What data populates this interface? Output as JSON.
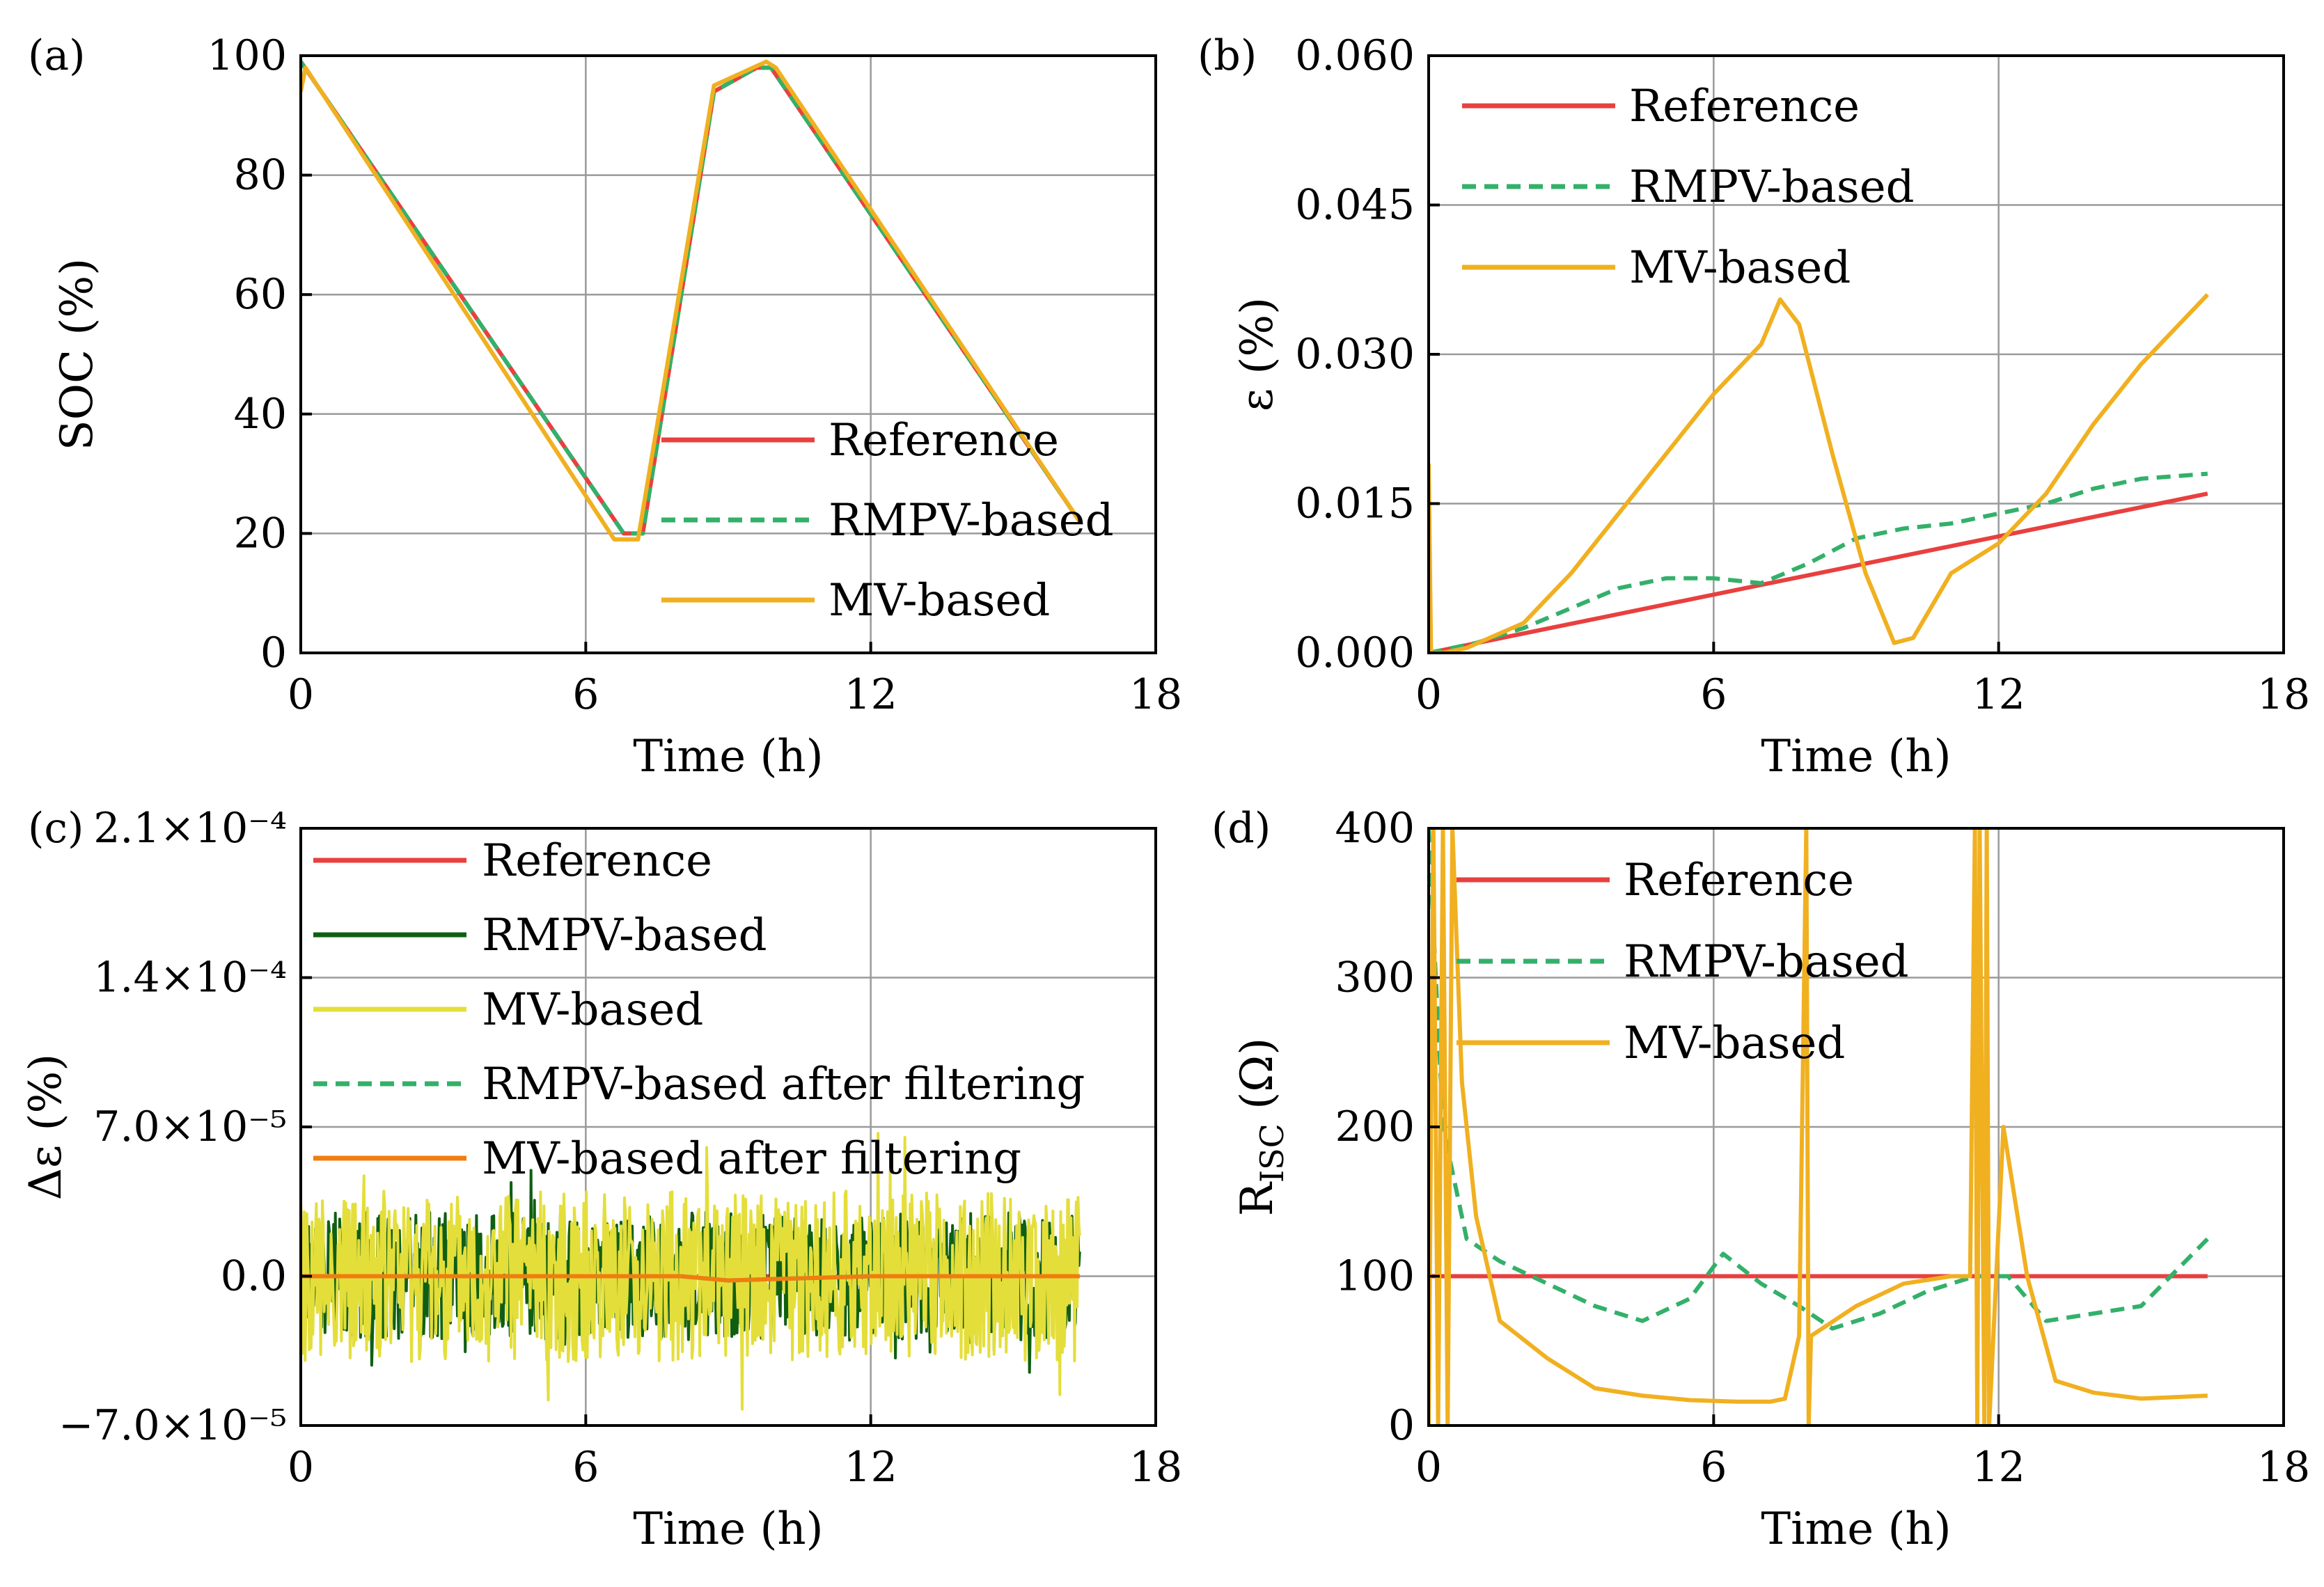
{
  "colors": {
    "reference": "#e8403f",
    "rmpv": "#33b06a",
    "mv": "#f0b020",
    "rmpv_dark": "#0f5f12",
    "mv_light": "#e4de3a",
    "mv_filtered": "#f07d10"
  },
  "chart_data": [
    {
      "id": "a",
      "type": "line",
      "panel_label": "(a)",
      "xlabel": "Time (h)",
      "ylabel": "SOC (%)",
      "xlim": [
        0,
        18
      ],
      "ylim": [
        0,
        100
      ],
      "xticks": [
        0,
        6,
        12,
        18
      ],
      "yticks": [
        0,
        20,
        40,
        60,
        80,
        100
      ],
      "ytick_labels": [
        "0",
        "20",
        "40",
        "60",
        "80",
        "100"
      ],
      "grid": true,
      "legend_position": "bottom-right",
      "series": [
        {
          "name": "Reference",
          "style": "solid",
          "color_key": "reference",
          "x": [
            0,
            6.8,
            7.2,
            8.7,
            9.6,
            9.9,
            16.4
          ],
          "y": [
            99,
            20,
            20,
            94,
            98,
            98,
            22
          ]
        },
        {
          "name": "RMPV-based",
          "style": "dashed",
          "color_key": "rmpv",
          "x": [
            0,
            6.8,
            7.2,
            8.7,
            9.6,
            9.9,
            16.4
          ],
          "y": [
            99,
            20,
            20,
            94,
            98,
            98,
            22
          ]
        },
        {
          "name": "MV-based",
          "style": "solid",
          "color_key": "mv",
          "x": [
            0,
            0.1,
            6.6,
            7.1,
            8.7,
            9.8,
            10.0,
            16.4
          ],
          "y": [
            94,
            98,
            19,
            19,
            95,
            99,
            98,
            22
          ]
        }
      ]
    },
    {
      "id": "b",
      "type": "line",
      "panel_label": "(b)",
      "xlabel": "Time (h)",
      "ylabel": "ε (%)",
      "xlim": [
        0,
        18
      ],
      "ylim": [
        0,
        0.06
      ],
      "xticks": [
        0,
        6,
        12,
        18
      ],
      "yticks": [
        0,
        0.015,
        0.03,
        0.045,
        0.06
      ],
      "ytick_labels": [
        "0.000",
        "0.015",
        "0.030",
        "0.045",
        "0.060"
      ],
      "grid": true,
      "legend_position": "top-left",
      "series": [
        {
          "name": "Reference",
          "style": "solid",
          "color_key": "reference",
          "x": [
            0,
            16.4
          ],
          "y": [
            0.0,
            0.016
          ]
        },
        {
          "name": "RMPV-based",
          "style": "dashed",
          "color_key": "rmpv",
          "x": [
            0,
            1,
            2,
            3,
            4,
            5,
            6,
            7,
            8,
            9,
            10,
            11,
            12,
            13,
            14,
            15,
            16.4
          ],
          "y": [
            0.0,
            0.001,
            0.0025,
            0.0045,
            0.0065,
            0.0075,
            0.0075,
            0.007,
            0.009,
            0.0115,
            0.0125,
            0.013,
            0.014,
            0.015,
            0.0165,
            0.0175,
            0.018
          ]
        },
        {
          "name": "MV-based",
          "style": "solid",
          "color_key": "mv",
          "x": [
            0,
            0.05,
            0.3,
            0.8,
            2,
            3,
            4,
            5,
            6,
            7,
            7.4,
            7.8,
            8.5,
            9.2,
            9.8,
            10.2,
            11,
            12,
            13,
            14,
            15,
            16.4
          ],
          "y": [
            0.019,
            0.0,
            0.0,
            0.0005,
            0.003,
            0.008,
            0.014,
            0.02,
            0.026,
            0.031,
            0.0355,
            0.033,
            0.02,
            0.008,
            0.001,
            0.0015,
            0.008,
            0.011,
            0.016,
            0.023,
            0.029,
            0.036
          ]
        }
      ]
    },
    {
      "id": "c",
      "type": "line",
      "panel_label": "(c)",
      "xlabel": "Time (h)",
      "ylabel": "Δε (%)",
      "xlim": [
        0,
        18
      ],
      "ylim": [
        -7e-05,
        0.00021
      ],
      "xticks": [
        0,
        6,
        12,
        18
      ],
      "yticks": [
        -7e-05,
        0.0,
        7e-05,
        0.00014,
        0.00021
      ],
      "ytick_labels": [
        "−7.0×10⁻⁵",
        "0.0",
        "7.0×10⁻⁵",
        "1.4×10⁻⁴",
        "2.1×10⁻⁴"
      ],
      "grid": true,
      "legend_position": "top-left",
      "series": [
        {
          "name": "Reference",
          "style": "solid",
          "color_key": "reference",
          "x": [
            0,
            16.4
          ],
          "y": [
            0,
            0
          ]
        },
        {
          "name": "RMPV-based",
          "style": "solid",
          "color_key": "rmpv_dark",
          "noise_amplitude": 3e-05,
          "x": [
            0,
            16.4
          ],
          "y": [
            0,
            0
          ]
        },
        {
          "name": "MV-based",
          "style": "solid",
          "color_key": "mv_light",
          "noise_amplitude": 4e-05,
          "x": [
            0,
            16.4
          ],
          "y": [
            0,
            0
          ]
        },
        {
          "name": "RMPV-based after filtering",
          "style": "dashed",
          "color_key": "rmpv",
          "x": [
            0,
            8,
            9,
            12,
            16.4
          ],
          "y": [
            0,
            0,
            -2e-06,
            0,
            0
          ]
        },
        {
          "name": "MV-based after filtering",
          "style": "solid",
          "color_key": "mv_filtered",
          "x": [
            0,
            8,
            9,
            12,
            16.4
          ],
          "y": [
            0,
            0,
            -2e-06,
            0,
            0
          ]
        }
      ]
    },
    {
      "id": "d",
      "type": "line",
      "panel_label": "(d)",
      "xlabel": "Time (h)",
      "ylabel_main": "R",
      "ylabel_sub": "ISC",
      "ylabel_unit": " (Ω)",
      "xlim": [
        0,
        18
      ],
      "ylim": [
        0,
        400
      ],
      "xticks": [
        0,
        6,
        12,
        18
      ],
      "yticks": [
        0,
        100,
        200,
        300,
        400
      ],
      "ytick_labels": [
        "0",
        "100",
        "200",
        "300",
        "400"
      ],
      "grid": true,
      "legend_position": "top-left",
      "series": [
        {
          "name": "Reference",
          "style": "solid",
          "color_key": "reference",
          "x": [
            0,
            16.4
          ],
          "y": [
            100,
            100
          ]
        },
        {
          "name": "RMPV-based",
          "style": "dashed",
          "color_key": "rmpv",
          "x": [
            0,
            0.3,
            0.8,
            1.5,
            2.5,
            3.5,
            4.5,
            5.5,
            6.2,
            7,
            7.8,
            8.5,
            9.5,
            10.5,
            11.5,
            12.2,
            13,
            14,
            15,
            16.4
          ],
          "y": [
            400,
            200,
            125,
            110,
            95,
            80,
            70,
            85,
            115,
            95,
            80,
            65,
            75,
            90,
            100,
            100,
            70,
            75,
            80,
            125
          ]
        },
        {
          "name": "MV-based",
          "style": "solid",
          "color_key": "mv",
          "x": [
            0,
            0.1,
            0.2,
            0.3,
            0.4,
            0.5,
            0.7,
            1,
            1.5,
            2.5,
            3.5,
            4.5,
            5.5,
            6.5,
            7.2,
            7.5,
            7.8,
            7.95,
            8.0,
            8.05,
            9,
            10,
            11,
            11.4,
            11.5,
            11.55,
            11.6,
            11.7,
            11.75,
            11.8,
            12.1,
            12.6,
            13.2,
            14,
            15,
            16.4
          ],
          "y": [
            0,
            400,
            0,
            400,
            0,
            400,
            230,
            140,
            70,
            45,
            25,
            20,
            17,
            16,
            16,
            18,
            60,
            400,
            0,
            60,
            80,
            95,
            100,
            100,
            400,
            0,
            400,
            0,
            400,
            0,
            200,
            100,
            30,
            22,
            18,
            20
          ]
        }
      ]
    }
  ]
}
